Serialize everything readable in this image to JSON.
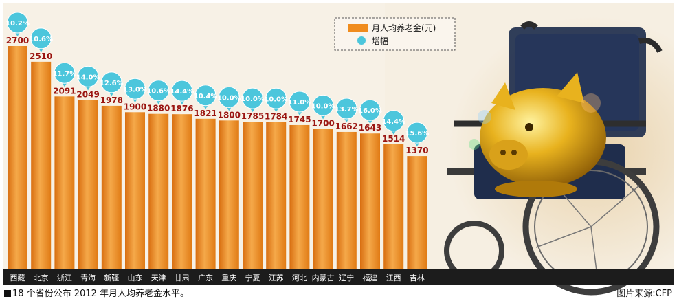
{
  "chart_data": {
    "type": "bar",
    "categories": [
      "西藏",
      "北京",
      "浙江",
      "青海",
      "新疆",
      "山东",
      "天津",
      "甘肃",
      "广东",
      "重庆",
      "宁夏",
      "江苏",
      "河北",
      "内蒙古",
      "辽宁",
      "福建",
      "江西",
      "吉林"
    ],
    "series": [
      {
        "name": "月人均养老金(元)",
        "values": [
          2700,
          2510,
          2091,
          2049,
          1978,
          1900,
          1880,
          1876,
          1821,
          1800,
          1785,
          1784,
          1745,
          1700,
          1662,
          1643,
          1514,
          1370
        ]
      },
      {
        "name": "增幅",
        "values": [
          "10.2%",
          "10.6%",
          "11.7%",
          "14.0%",
          "12.6%",
          "13.0%",
          "10.6%",
          "14.4%",
          "10.4%",
          "10.0%",
          "10.0%",
          "10.0%",
          "11.0%",
          "10.0%",
          "13.7%",
          "16.0%",
          "14.4%",
          "15.6%"
        ]
      }
    ],
    "ylim": [
      0,
      2700
    ],
    "legend_position": "top-right",
    "colors": {
      "bar": "#f08c1e",
      "bar_light": "#f5a94a",
      "bar_dark": "#d86e10",
      "bubble": "#4cc6dc",
      "value_label": "#9a1410",
      "axis_strip": "#1c1c1c"
    }
  },
  "caption": {
    "left": "18 个省份公布 2012 年月人均养老金水平。",
    "right": "图片来源:CFP"
  }
}
